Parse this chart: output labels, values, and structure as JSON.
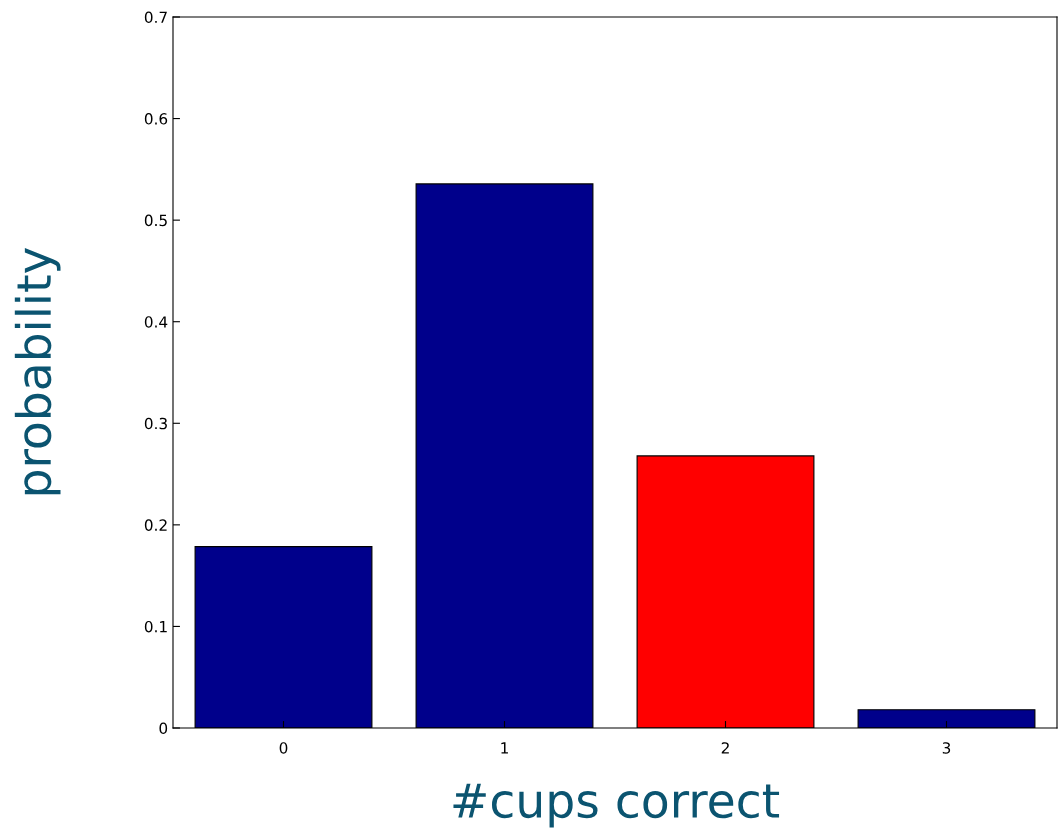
{
  "chart_data": {
    "type": "bar",
    "xlabel": "#cups correct",
    "ylabel": "probability",
    "categories": [
      "0",
      "1",
      "2",
      "3"
    ],
    "values": [
      0.1786,
      0.5357,
      0.2679,
      0.0179
    ],
    "colors": [
      "#00008b",
      "#00008b",
      "#ff0000",
      "#00008b"
    ],
    "ylim": [
      0,
      0.7
    ],
    "yticks": [
      0,
      0.1,
      0.2,
      0.3,
      0.4,
      0.5,
      0.6,
      0.7
    ],
    "grid": false
  }
}
